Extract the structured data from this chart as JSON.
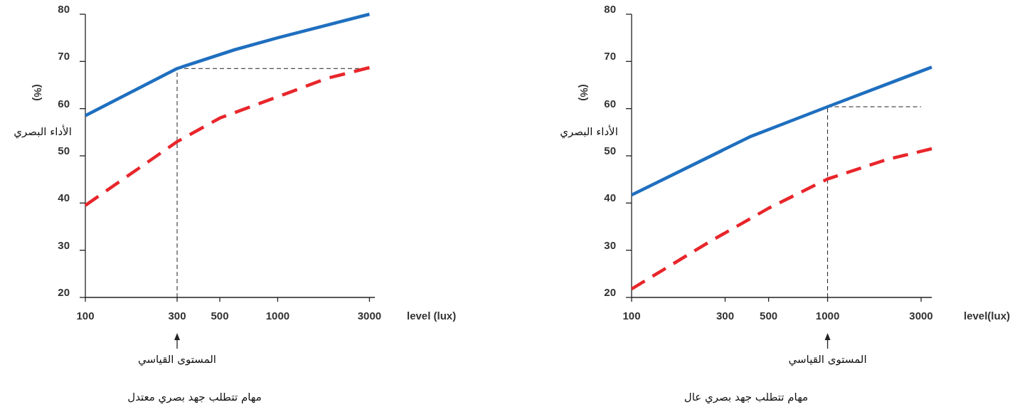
{
  "chart_data": [
    {
      "type": "line",
      "title": "مهام تتطلب جهد بصري معتدل",
      "xlabel": "level (lux)",
      "ylabel": "الأداء البصري",
      "annotations": [
        "(%)"
      ],
      "log": "x",
      "xlim": [
        100,
        3200
      ],
      "xticks": [
        100,
        300,
        500,
        1000,
        3000
      ],
      "ylim": [
        20,
        80
      ],
      "yticks": [
        20,
        30,
        40,
        50,
        60,
        70,
        80
      ],
      "series": [
        {
          "color": "#1f6fbf",
          "line_style": "solid",
          "x": [
            100,
            300,
            600,
            1000,
            3000
          ],
          "values": [
            58.5,
            68.5,
            72.5,
            75,
            80
          ]
        },
        {
          "color": "#e8262b",
          "line_style": "dashed",
          "x": [
            100,
            300,
            500,
            1000,
            1800,
            3000
          ],
          "values": [
            39.5,
            53,
            58,
            62.5,
            66.4,
            68.7
          ]
        }
      ],
      "ref_lines": [
        {
          "axis": "x",
          "value": 300,
          "label": "المستوى القياسي"
        },
        {
          "axis": "y",
          "value": 68.5
        }
      ]
    },
    {
      "type": "line",
      "title": "مهام تتطلب جهد بصري عال",
      "xlabel": "level(lux)",
      "ylabel": "الأداء البصري",
      "annotations": [
        "(%)"
      ],
      "log": "x",
      "xlim": [
        100,
        3400
      ],
      "xticks": [
        100,
        300,
        500,
        1000,
        3000
      ],
      "ylim": [
        20,
        80
      ],
      "yticks": [
        20,
        30,
        40,
        50,
        60,
        70,
        80
      ],
      "series": [
        {
          "color": "#1f6fbf",
          "line_style": "solid",
          "x": [
            100,
            400,
            1000,
            3400
          ],
          "values": [
            41.7,
            54,
            60.4,
            68.8
          ]
        },
        {
          "color": "#e8262b",
          "line_style": "dashed",
          "x": [
            100,
            250,
            500,
            1000,
            2000,
            3400
          ],
          "values": [
            21.8,
            31.8,
            38.9,
            45.1,
            49.2,
            51.5
          ]
        }
      ],
      "ref_lines": [
        {
          "axis": "x",
          "value": 1000,
          "label": "المستوى القياسي"
        },
        {
          "axis": "y",
          "value": 60.4
        }
      ]
    }
  ]
}
